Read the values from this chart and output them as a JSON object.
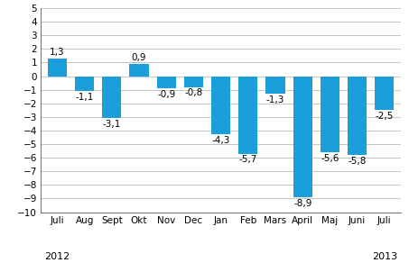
{
  "categories": [
    "Juli",
    "Aug",
    "Sept",
    "Okt",
    "Nov",
    "Dec",
    "Jan",
    "Feb",
    "Mars",
    "April",
    "Maj",
    "Juni",
    "Juli"
  ],
  "values": [
    1.3,
    -1.1,
    -3.1,
    0.9,
    -0.9,
    -0.8,
    -4.3,
    -5.7,
    -1.3,
    -8.9,
    -5.6,
    -5.8,
    -2.5
  ],
  "bar_color": "#1a9fda",
  "ylim": [
    -10,
    5
  ],
  "yticks": [
    -10,
    -9,
    -8,
    -7,
    -6,
    -5,
    -4,
    -3,
    -2,
    -1,
    0,
    1,
    2,
    3,
    4,
    5
  ],
  "label_fontsize": 7.5,
  "value_fontsize": 7.5,
  "year_fontsize": 8,
  "background_color": "#ffffff",
  "grid_color": "#bbbbbb",
  "year_2012": "2012",
  "year_2013": "2013",
  "year_2012_idx": 0,
  "year_2013_idx": 12
}
